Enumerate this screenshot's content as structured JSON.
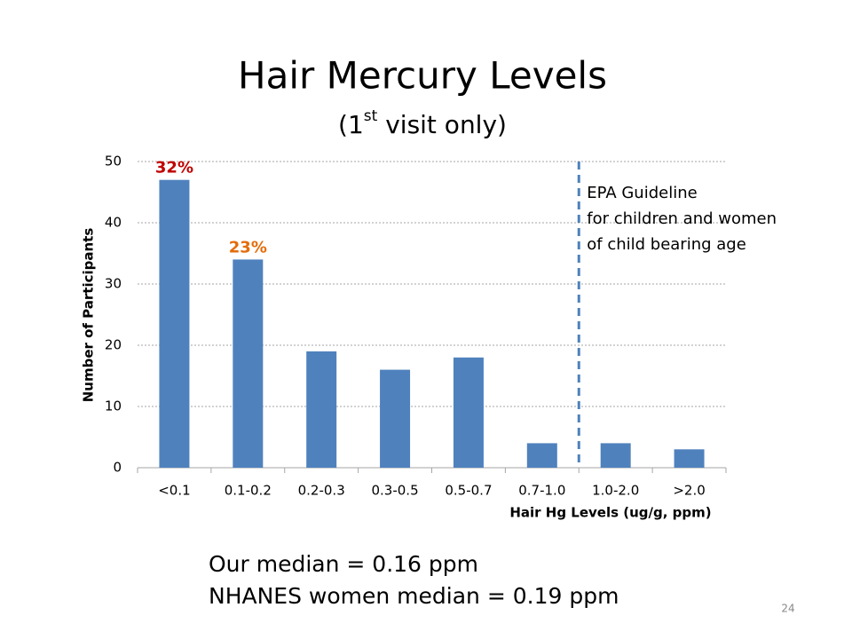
{
  "chart_data": {
    "type": "bar",
    "title": "Hair Mercury Levels",
    "subtitle": {
      "before": "(1",
      "sup": "st",
      "after": " visit only)"
    },
    "x_label": "Hair Hg Levels (ug/g, ppm)",
    "y_label": "Number of Participants",
    "categories": [
      "<0.1",
      "0.1-0.2",
      "0.2-0.3",
      "0.3-0.5",
      "0.5-0.7",
      "0.7-1.0",
      "1.0-2.0",
      ">2.0"
    ],
    "values": [
      47,
      34,
      19,
      16,
      18,
      4,
      4,
      3
    ],
    "color": "#4f81bd",
    "ylim": [
      0,
      50
    ],
    "yticks": [
      0,
      10,
      20,
      30,
      40,
      50
    ],
    "grid": true,
    "annotations": [
      {
        "text": "32%",
        "category": "<0.1",
        "color": "#c00000"
      },
      {
        "text": "23%",
        "category": "0.1-0.2",
        "color": "#e46c0a"
      }
    ],
    "guideline": {
      "before_category": "1.0-2.0",
      "color": "#4f81bd",
      "lines": [
        "EPA Guideline",
        "for children and women",
        "of child bearing age"
      ]
    }
  },
  "notes": [
    "Our median = 0.16 ppm",
    "NHANES women median = 0.19 ppm"
  ],
  "page_number": "24"
}
